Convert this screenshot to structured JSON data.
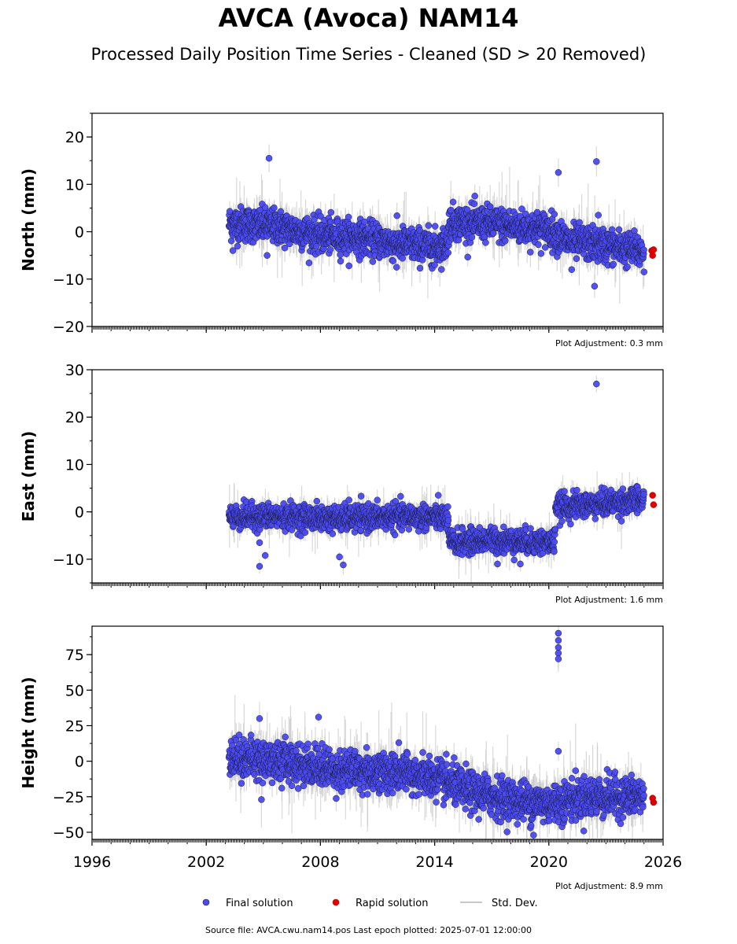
{
  "title": "AVCA (Avoca) NAM14",
  "subtitle": "Processed Daily Position Time Series - Cleaned (SD > 20 Removed)",
  "footer": "Source file: AVCA.cwu.nam14.pos  Last epoch plotted: 2025-07-01 12:00:00",
  "colors": {
    "final": "#4a4af0",
    "rapid": "#e00000",
    "stddev": "#c8c8c8"
  },
  "legend": {
    "final": "Final solution",
    "rapid": "Rapid solution",
    "stddev": "Std. Dev."
  },
  "chart_data": [
    {
      "type": "scatter",
      "ylabel": "North (mm)",
      "ylim": [
        -20,
        25
      ],
      "yticks": [
        -20,
        -10,
        0,
        10,
        20
      ],
      "xlim": [
        1996,
        2026
      ],
      "show_x_tick_labels": false,
      "adjustment": "Plot Adjustment: 0.3 mm",
      "trend": [
        [
          2003.2,
          1.8
        ],
        [
          2005.5,
          1.2
        ],
        [
          2008.0,
          -0.8
        ],
        [
          2010.0,
          -1.2
        ],
        [
          2012.0,
          -2.5
        ],
        [
          2014.0,
          -3.2
        ],
        [
          2014.7,
          -2.5
        ],
        [
          2014.75,
          2.0
        ],
        [
          2016.5,
          1.8
        ],
        [
          2018.5,
          1.0
        ],
        [
          2020.0,
          0.5
        ],
        [
          2021.0,
          -2.0
        ],
        [
          2023.0,
          -3.0
        ],
        [
          2025.0,
          -4.2
        ]
      ],
      "scatter_sd": 1.8,
      "outliers": [
        [
          2005.3,
          15.5
        ],
        [
          2020.5,
          12.5
        ],
        [
          2022.5,
          14.8
        ],
        [
          2022.6,
          3.5
        ],
        [
          2022.4,
          -11.5
        ],
        [
          2003.4,
          -4.0
        ],
        [
          2005.2,
          -5.0
        ],
        [
          2012.0,
          -7.5
        ],
        [
          2014.0,
          -7.0
        ],
        [
          2021.2,
          -8.0
        ],
        [
          2025.0,
          -8.5
        ]
      ],
      "rapid": [
        [
          2025.4,
          -4.0
        ],
        [
          2025.45,
          -5.0
        ],
        [
          2025.5,
          -3.8
        ]
      ]
    },
    {
      "type": "scatter",
      "ylabel": "East (mm)",
      "ylim": [
        -15,
        30
      ],
      "yticks": [
        -10,
        0,
        10,
        20,
        30
      ],
      "xlim": [
        1996,
        2026
      ],
      "show_x_tick_labels": false,
      "adjustment": "Plot Adjustment: 1.6 mm",
      "trend": [
        [
          2003.2,
          -1.0
        ],
        [
          2006.0,
          -1.0
        ],
        [
          2009.0,
          -1.5
        ],
        [
          2012.0,
          -1.0
        ],
        [
          2014.7,
          -1.2
        ],
        [
          2014.75,
          -6.5
        ],
        [
          2017.0,
          -6.0
        ],
        [
          2020.3,
          -6.5
        ],
        [
          2020.35,
          1.0
        ],
        [
          2022.0,
          1.5
        ],
        [
          2025.0,
          2.5
        ]
      ],
      "scatter_sd": 1.3,
      "outliers": [
        [
          2022.5,
          27.0
        ],
        [
          2004.8,
          -11.5
        ],
        [
          2009.2,
          -11.2
        ],
        [
          2005.1,
          -9.2
        ],
        [
          2009.0,
          -9.5
        ],
        [
          2017.3,
          -11.0
        ],
        [
          2018.5,
          -11.0
        ],
        [
          2009.5,
          2.5
        ],
        [
          2004.8,
          -6.5
        ]
      ],
      "rapid": [
        [
          2025.45,
          3.5
        ],
        [
          2025.5,
          1.5
        ]
      ]
    },
    {
      "type": "scatter",
      "ylabel": "Height (mm)",
      "ylim": [
        -55,
        95
      ],
      "yticks": [
        -50,
        -25,
        0,
        25,
        50,
        75
      ],
      "xlim": [
        1996,
        2026
      ],
      "xticks": [
        1996,
        2002,
        2008,
        2014,
        2020,
        2026
      ],
      "show_x_tick_labels": true,
      "adjustment": "Plot Adjustment: 8.9 mm",
      "trend": [
        [
          2003.2,
          3.0
        ],
        [
          2006.0,
          0.0
        ],
        [
          2009.0,
          -6.0
        ],
        [
          2012.0,
          -8.0
        ],
        [
          2014.0,
          -12.0
        ],
        [
          2016.0,
          -22.0
        ],
        [
          2018.0,
          -27.0
        ],
        [
          2020.0,
          -30.0
        ],
        [
          2022.0,
          -25.0
        ],
        [
          2025.0,
          -25.0
        ]
      ],
      "scatter_sd": 7.0,
      "outliers": [
        [
          2020.5,
          90.0
        ],
        [
          2020.5,
          85.0
        ],
        [
          2020.5,
          80.0
        ],
        [
          2020.5,
          76.0
        ],
        [
          2020.5,
          72.0
        ],
        [
          2020.5,
          7.0
        ],
        [
          2004.8,
          30.0
        ],
        [
          2007.9,
          31.0
        ],
        [
          2019.2,
          -52.0
        ],
        [
          2004.9,
          -27.0
        ]
      ],
      "rapid": [
        [
          2025.45,
          -26.0
        ],
        [
          2025.5,
          -29.0
        ]
      ]
    }
  ]
}
